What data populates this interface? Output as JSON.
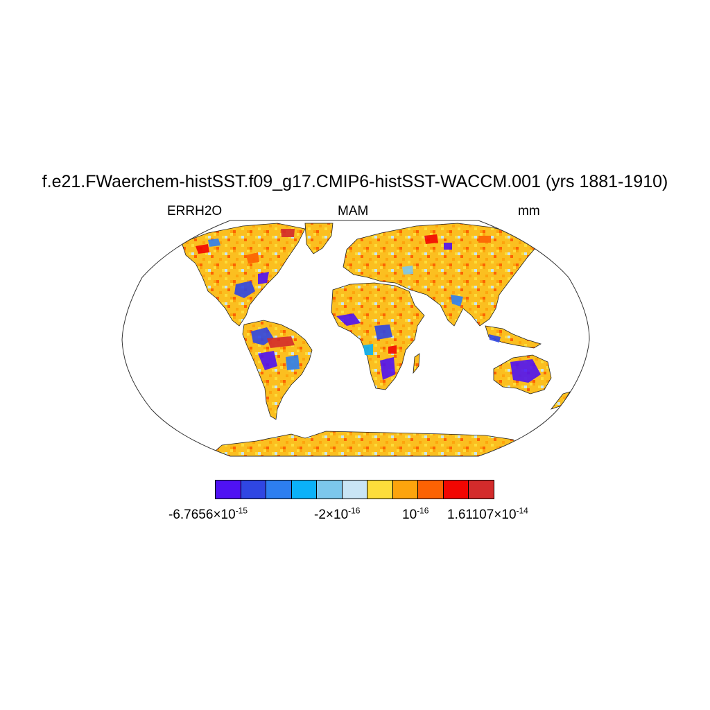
{
  "title": "f.e21.FWaerchem-histSST.f09_g17.CMIP6-histSST-WACCM.001 (yrs 1881-1910)",
  "left_string": "ERRH2O",
  "center_string": "MAM",
  "right_string": "mm",
  "colorbar": {
    "colors": [
      "#4f12f3",
      "#2f46e3",
      "#2d7ef0",
      "#0bb1f8",
      "#7cc7ec",
      "#c9e5f5",
      "#fddd3b",
      "#fda40d",
      "#fc6203",
      "#f20602",
      "#d32b2b"
    ],
    "labels": [
      {
        "mantissa": "-6.7656",
        "exponent": "-15"
      },
      {
        "mantissa": "-2",
        "exponent": "-16"
      },
      {
        "mantissa": "",
        "exponent": "-16"
      },
      {
        "mantissa": "1.61107",
        "exponent": "-14"
      }
    ]
  },
  "map": {
    "projection": "Robinson",
    "land_fill_color": "#fbbf20",
    "ocean_color": "#ffffff"
  }
}
